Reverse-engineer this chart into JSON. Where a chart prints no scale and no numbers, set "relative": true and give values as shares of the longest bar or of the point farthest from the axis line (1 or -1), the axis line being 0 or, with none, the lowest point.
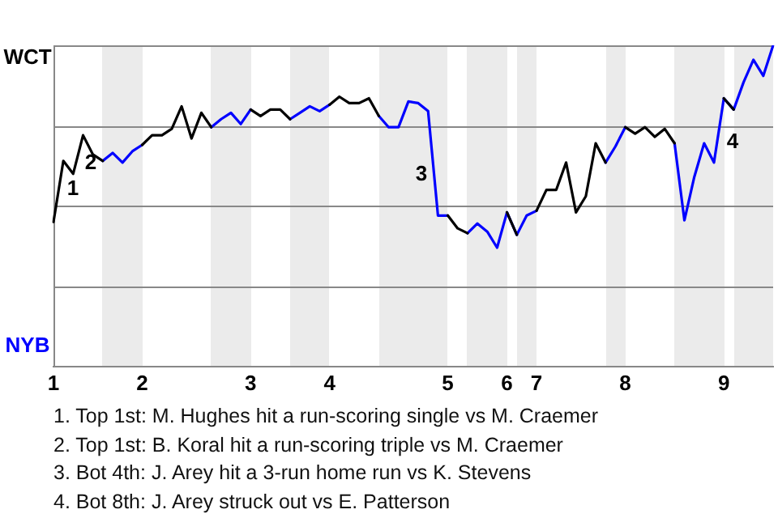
{
  "chart_data": {
    "type": "line",
    "relative": true,
    "categories": [
      "1",
      null,
      null,
      null,
      null,
      null,
      null,
      null,
      null,
      "2",
      null,
      null,
      null,
      null,
      null,
      null,
      null,
      null,
      null,
      null,
      "3",
      null,
      null,
      null,
      null,
      null,
      null,
      null,
      "4",
      null,
      null,
      null,
      null,
      null,
      null,
      null,
      null,
      null,
      null,
      null,
      "5",
      null,
      null,
      null,
      null,
      null,
      "6",
      null,
      null,
      "7",
      null,
      null,
      null,
      null,
      null,
      null,
      null,
      null,
      "8",
      null,
      null,
      null,
      null,
      null,
      null,
      null,
      null,
      null,
      "9",
      null,
      null,
      null,
      null,
      null
    ],
    "series": [
      {
        "color": "#000000",
        "values": [
          0.45,
          0.64,
          0.6,
          0.72,
          0.66,
          0.64,
          null,
          null,
          null,
          0.69,
          0.72,
          0.72,
          0.74,
          0.81,
          0.71,
          0.79,
          0.745,
          null,
          null,
          null,
          0.8,
          0.78,
          0.8,
          0.8,
          0.77,
          null,
          null,
          null,
          0.815,
          0.84,
          0.82,
          0.82,
          0.835,
          0.78,
          null,
          null,
          null,
          null,
          null,
          null,
          0.47,
          0.43,
          0.415,
          null,
          null,
          null,
          0.48,
          0.41,
          null,
          0.485,
          0.55,
          0.55,
          0.635,
          0.48,
          0.53,
          0.695,
          0.635,
          null,
          0.745,
          0.725,
          0.745,
          0.715,
          0.74,
          0.695,
          null,
          null,
          null,
          null,
          0.835,
          0.8,
          null,
          null,
          null,
          null
        ]
      },
      {
        "color": "#0000ff",
        "values": [
          null,
          null,
          null,
          null,
          null,
          0.64,
          0.665,
          0.635,
          0.67,
          0.69,
          null,
          null,
          null,
          null,
          null,
          null,
          0.745,
          0.77,
          0.79,
          0.755,
          0.8,
          null,
          null,
          null,
          0.77,
          0.79,
          0.81,
          0.795,
          0.815,
          null,
          null,
          null,
          null,
          0.78,
          0.745,
          0.745,
          0.825,
          0.82,
          0.795,
          0.47,
          0.47,
          null,
          0.415,
          0.445,
          0.42,
          0.37,
          0.48,
          0.41,
          0.47,
          0.485,
          null,
          null,
          null,
          null,
          null,
          null,
          0.635,
          0.685,
          0.745,
          null,
          null,
          null,
          null,
          0.695,
          0.455,
          0.59,
          0.695,
          0.635,
          0.835,
          0.8,
          0.885,
          0.955,
          0.905,
          1
        ]
      }
    ],
    "legend": false,
    "marker": "none",
    "line_style": "solid",
    "annotations": [
      "WCT",
      "NYB",
      "1",
      "2",
      "3",
      "4",
      "1. Top 1st: M. Hughes hit a run-scoring single vs M. Craemer",
      "2. Top 1st: B. Koral hit a run-scoring triple vs M. Craemer",
      "3. Bot 4th: J. Arey hit a 3-run home run vs K. Stevens",
      "4. Bot 8th: J. Arey struck out vs E. Patterson"
    ]
  }
}
